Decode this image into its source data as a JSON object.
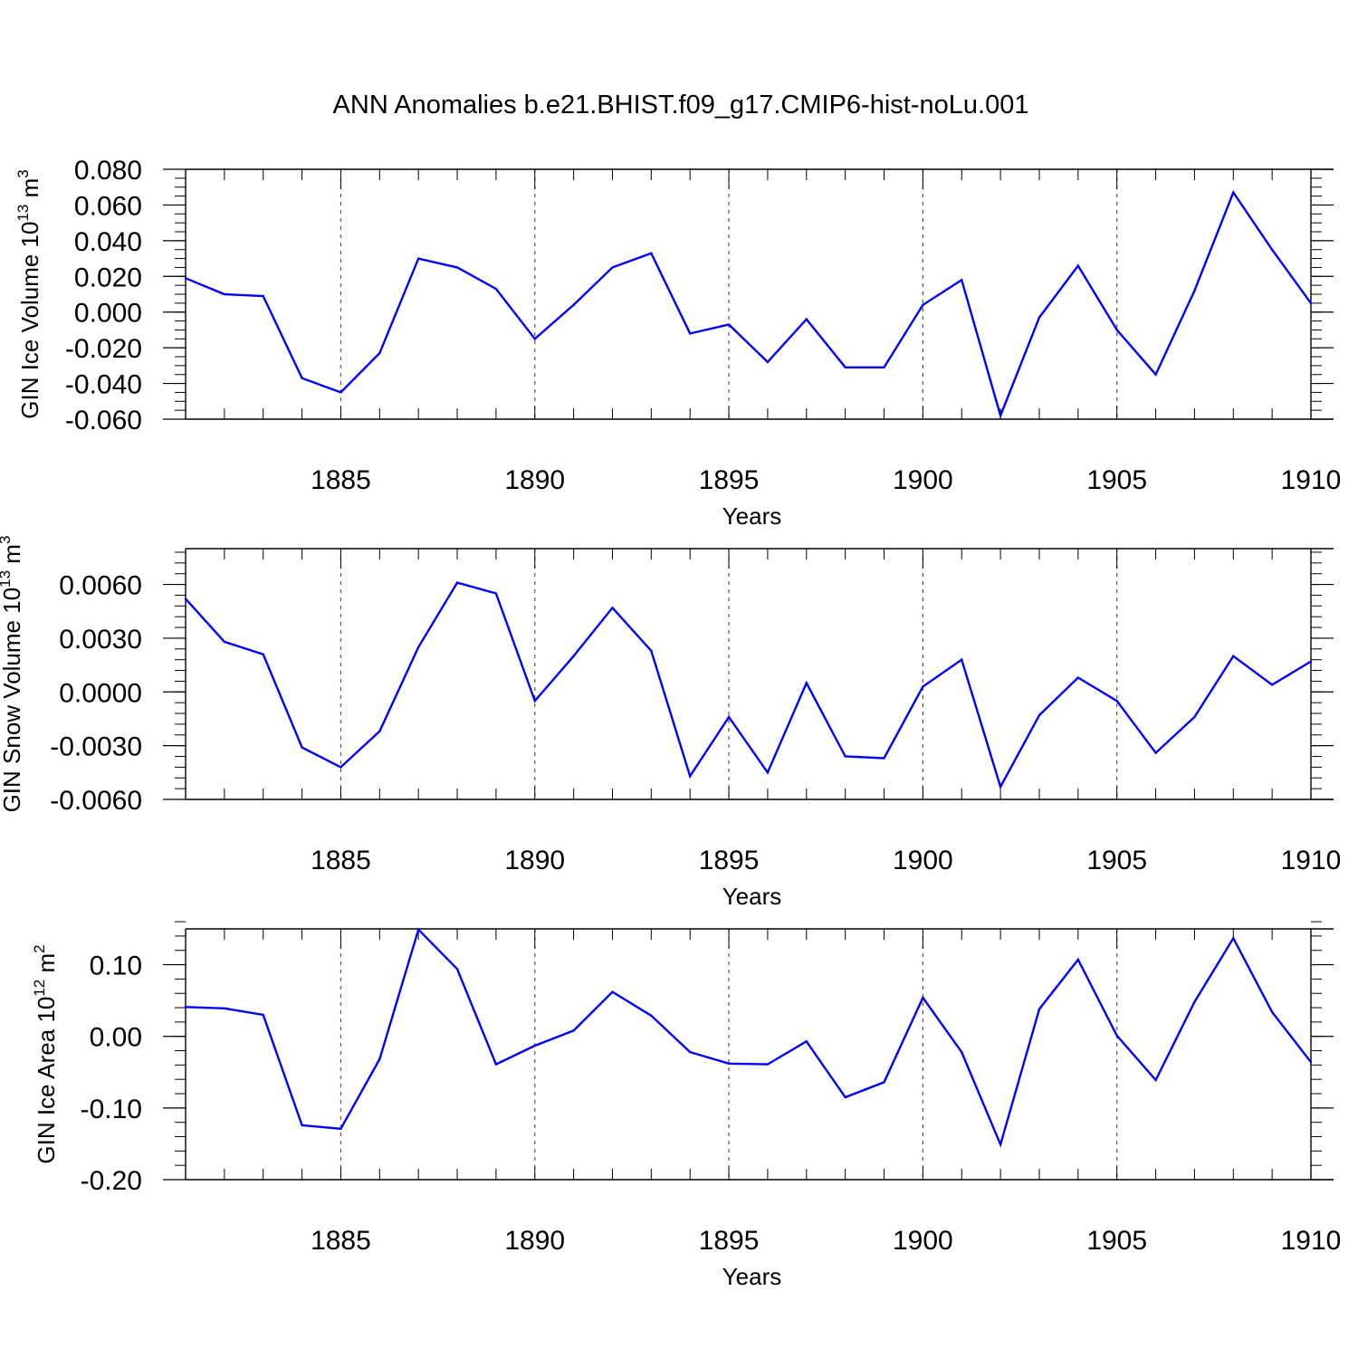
{
  "title": "ANN Anomalies b.e21.BHIST.f09_g17.CMIP6-hist-noLu.001",
  "chart_data": [
    {
      "type": "line",
      "ylabel": {
        "main": "GIN Ice Volume 10",
        "exponent": "13",
        "unit": " m",
        "unit_exponent": "3"
      },
      "xlabel": "Years",
      "xlim": [
        1881,
        1910
      ],
      "ylim": [
        -0.06,
        0.08
      ],
      "yticks": [
        -0.06,
        -0.04,
        -0.02,
        0.0,
        0.02,
        0.04,
        0.06,
        0.08
      ],
      "ytick_labels": [
        "-0.060",
        "-0.040",
        "-0.020",
        "0.000",
        "0.020",
        "0.040",
        "0.060",
        "0.080"
      ],
      "y_minor_step": 0.005,
      "xticks": [
        1885,
        1890,
        1895,
        1900,
        1905,
        1910
      ],
      "xtick_labels": [
        "1885",
        "1890",
        "1895",
        "1900",
        "1905",
        "1910"
      ],
      "x_gridlines": [
        1885,
        1890,
        1895,
        1900,
        1905
      ],
      "line_color": "#0000ff",
      "x": [
        1881,
        1882,
        1883,
        1884,
        1885,
        1886,
        1887,
        1888,
        1889,
        1890,
        1891,
        1892,
        1893,
        1894,
        1895,
        1896,
        1897,
        1898,
        1899,
        1900,
        1901,
        1902,
        1903,
        1904,
        1905,
        1906,
        1907,
        1908,
        1909,
        1910
      ],
      "values": [
        0.019,
        0.01,
        0.009,
        -0.037,
        -0.045,
        -0.023,
        0.03,
        0.025,
        0.013,
        -0.015,
        0.004,
        0.025,
        0.033,
        -0.012,
        -0.007,
        -0.028,
        -0.004,
        -0.031,
        -0.031,
        0.004,
        0.018,
        -0.058,
        -0.003,
        0.026,
        -0.01,
        -0.035,
        0.012,
        0.067,
        0.035,
        0.005
      ]
    },
    {
      "type": "line",
      "ylabel": {
        "main": "GIN Snow Volume 10",
        "exponent": "13",
        "unit": " m",
        "unit_exponent": "3"
      },
      "xlabel": "Years",
      "xlim": [
        1881,
        1910
      ],
      "ylim": [
        -0.006,
        0.008
      ],
      "yticks": [
        -0.006,
        -0.003,
        0.0,
        0.003,
        0.006
      ],
      "ytick_labels": [
        "-0.0060",
        "-0.0030",
        "0.0000",
        "0.0030",
        "0.0060"
      ],
      "y_minor_step": 0.0006,
      "xticks": [
        1885,
        1890,
        1895,
        1900,
        1905,
        1910
      ],
      "xtick_labels": [
        "1885",
        "1890",
        "1895",
        "1900",
        "1905",
        "1910"
      ],
      "x_gridlines": [
        1885,
        1890,
        1895,
        1900,
        1905
      ],
      "line_color": "#0000ff",
      "x": [
        1881,
        1882,
        1883,
        1884,
        1885,
        1886,
        1887,
        1888,
        1889,
        1890,
        1891,
        1892,
        1893,
        1894,
        1895,
        1896,
        1897,
        1898,
        1899,
        1900,
        1901,
        1902,
        1903,
        1904,
        1905,
        1906,
        1907,
        1908,
        1909,
        1910
      ],
      "values": [
        0.0052,
        0.0028,
        0.0021,
        -0.0031,
        -0.0042,
        -0.0022,
        0.0025,
        0.0061,
        0.0055,
        -0.0005,
        0.002,
        0.0047,
        0.0023,
        -0.0047,
        -0.0014,
        -0.0045,
        0.0005,
        -0.0036,
        -0.0037,
        0.0003,
        0.0018,
        -0.0053,
        -0.0013,
        0.0008,
        -0.0005,
        -0.0034,
        -0.0014,
        0.002,
        0.0004,
        0.0017
      ]
    },
    {
      "type": "line",
      "ylabel": {
        "main": "GIN Ice Area 10",
        "exponent": "12",
        "unit": " m",
        "unit_exponent": "2"
      },
      "xlabel": "Years",
      "xlim": [
        1881,
        1910
      ],
      "ylim": [
        -0.2,
        0.15
      ],
      "yticks": [
        -0.2,
        -0.1,
        0.0,
        0.1
      ],
      "ytick_labels": [
        "-0.20",
        "-0.10",
        "0.00",
        "0.10"
      ],
      "y_minor_step": 0.02,
      "xticks": [
        1885,
        1890,
        1895,
        1900,
        1905,
        1910
      ],
      "xtick_labels": [
        "1885",
        "1890",
        "1895",
        "1900",
        "1905",
        "1910"
      ],
      "x_gridlines": [
        1885,
        1890,
        1895,
        1900,
        1905
      ],
      "line_color": "#0000ff",
      "x": [
        1881,
        1882,
        1883,
        1884,
        1885,
        1886,
        1887,
        1888,
        1889,
        1890,
        1891,
        1892,
        1893,
        1894,
        1895,
        1896,
        1897,
        1898,
        1899,
        1900,
        1901,
        1902,
        1903,
        1904,
        1905,
        1906,
        1907,
        1908,
        1909,
        1910
      ],
      "values": [
        0.041,
        0.039,
        0.03,
        -0.124,
        -0.129,
        -0.032,
        0.149,
        0.094,
        -0.039,
        -0.013,
        0.008,
        0.062,
        0.029,
        -0.022,
        -0.038,
        -0.039,
        -0.007,
        -0.085,
        -0.064,
        0.054,
        -0.022,
        -0.151,
        0.038,
        0.107,
        0.001,
        -0.061,
        0.048,
        0.137,
        0.034,
        -0.036
      ]
    }
  ]
}
